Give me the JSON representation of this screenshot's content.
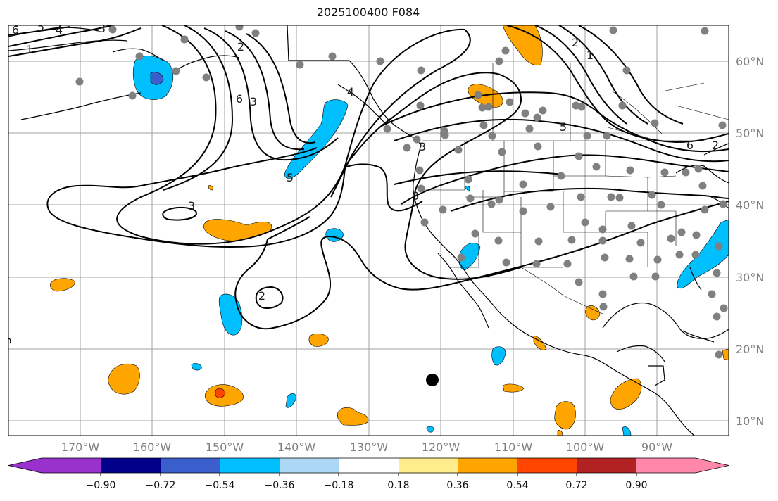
{
  "title": "2025100400 F084",
  "latitude_labels": [
    "60°N",
    "50°N",
    "40°N",
    "30°N",
    "20°N",
    "10°N"
  ],
  "longitude_labels": [
    "170°W",
    "160°W",
    "150°W",
    "140°W",
    "130°W",
    "120°W",
    "110°W",
    "100°W",
    "90°W"
  ],
  "contour_labels": [
    "6",
    "5",
    "4",
    "3",
    "1",
    "2",
    "6",
    "3",
    "5",
    "3",
    "2",
    "3",
    "2",
    "1",
    "5",
    "6",
    "2",
    "4",
    "3"
  ],
  "colorbar": {
    "tick_labels": [
      "−0.90",
      "−0.72",
      "−0.54",
      "−0.36",
      "−0.18",
      "0.18",
      "0.36",
      "0.54",
      "0.72",
      "0.90"
    ],
    "colors": [
      "#9932cc",
      "#00008b",
      "#3a5fcd",
      "#00bfff",
      "#add8f5",
      "#ffffff",
      "#ffec8b",
      "#ffa500",
      "#ff4500",
      "#b22222",
      "#ff88aa"
    ]
  },
  "colors": {
    "grid": "#a0a0a0",
    "contour": "#000000",
    "station_dot": "#808080",
    "marker": "#000000"
  }
}
